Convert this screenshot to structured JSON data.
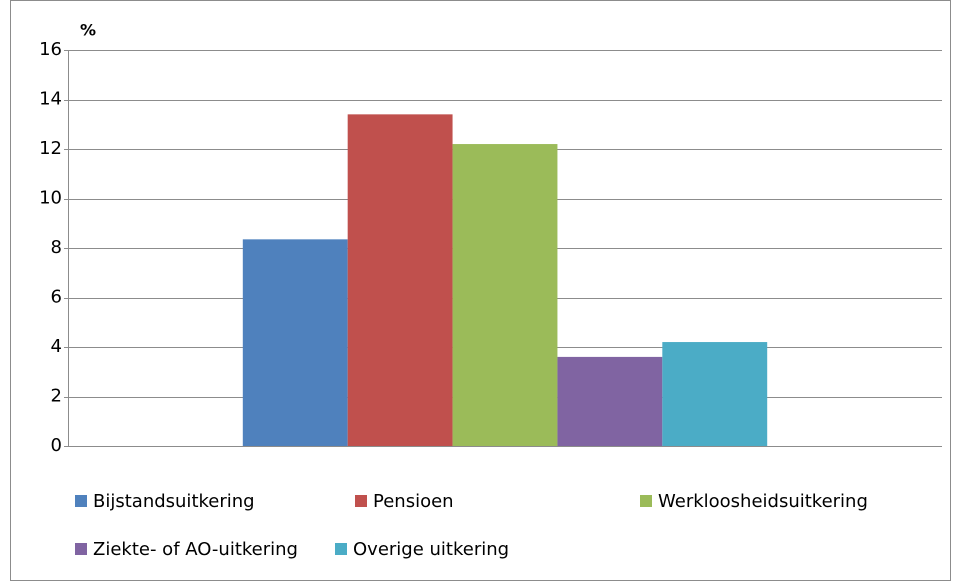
{
  "chart_data": {
    "type": "bar",
    "y_label": "%",
    "categories": [
      null
    ],
    "series": [
      {
        "name": "Bijstandsuitkering",
        "color": "#4f81bd",
        "values": [
          8.35
        ]
      },
      {
        "name": "Pensioen",
        "color": "#c0504d",
        "values": [
          13.4
        ]
      },
      {
        "name": "Werkloosheidsuitkering",
        "color": "#9bbb59",
        "values": [
          12.2
        ]
      },
      {
        "name": "Ziekte- of AO-uitkering",
        "color": "#8064a2",
        "values": [
          3.6
        ]
      },
      {
        "name": "Overige uitkering",
        "color": "#4bacc6",
        "values": [
          4.2
        ]
      }
    ],
    "ylim": [
      0,
      16
    ],
    "yticks": [
      0,
      2,
      4,
      6,
      8,
      10,
      12,
      14,
      16
    ],
    "grid": true
  }
}
